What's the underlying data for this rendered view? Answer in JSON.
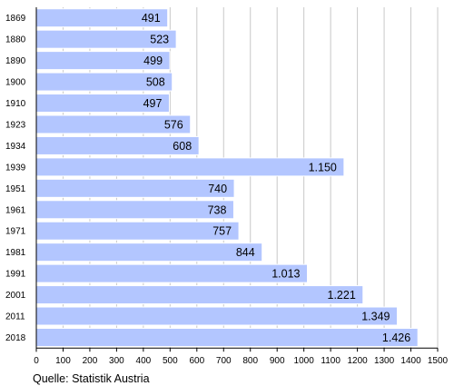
{
  "chart_data": {
    "type": "bar",
    "orientation": "horizontal",
    "categories": [
      "1869",
      "1880",
      "1890",
      "1900",
      "1910",
      "1923",
      "1934",
      "1939",
      "1951",
      "1961",
      "1971",
      "1981",
      "1991",
      "2001",
      "2011",
      "2018"
    ],
    "values": [
      491,
      523,
      499,
      508,
      497,
      576,
      608,
      1150,
      740,
      738,
      757,
      844,
      1013,
      1221,
      1349,
      1426
    ],
    "value_labels": [
      "491",
      "523",
      "499",
      "508",
      "497",
      "576",
      "608",
      "1.150",
      "740",
      "738",
      "757",
      "844",
      "1.013",
      "1.221",
      "1.349",
      "1.426"
    ],
    "xlim": [
      0,
      1500
    ],
    "x_ticks": [
      0,
      100,
      200,
      300,
      400,
      500,
      600,
      700,
      800,
      900,
      1000,
      1100,
      1200,
      1300,
      1400,
      1500
    ],
    "grid": "vertical",
    "bar_color": "#b3c6ff",
    "bar_border_color": "#ffffff",
    "grid_color": "#c8c8c8",
    "axis_color": "#000000"
  },
  "source": "Quelle: Statistik Austria"
}
